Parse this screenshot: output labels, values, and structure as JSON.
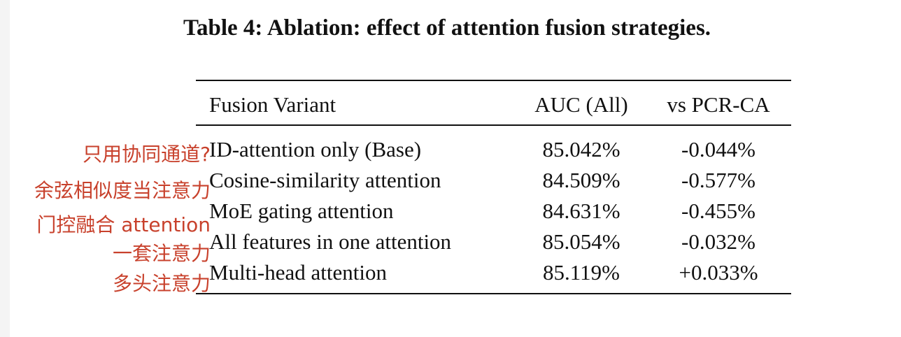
{
  "table": {
    "caption": "Table 4: Ablation: effect of attention fusion strategies.",
    "headers": [
      "Fusion Variant",
      "AUC (All)",
      "vs PCR-CA"
    ],
    "rows": [
      {
        "variant": "ID-attention only (Base)",
        "auc": "85.042%",
        "delta": "-0.044%"
      },
      {
        "variant": "Cosine-similarity attention",
        "auc": "84.509%",
        "delta": "-0.577%"
      },
      {
        "variant": "MoE gating attention",
        "auc": "84.631%",
        "delta": "-0.455%"
      },
      {
        "variant": "All features in one attention",
        "auc": "85.054%",
        "delta": "-0.032%"
      },
      {
        "variant": "Multi-head attention",
        "auc": "85.119%",
        "delta": "+0.033%"
      }
    ]
  },
  "annotations": {
    "color": "#c8412c",
    "notes": [
      "只用协同通道?",
      "余弦相似度当注意力",
      "门控融合 attention",
      "一套注意力",
      "多头注意力"
    ]
  }
}
